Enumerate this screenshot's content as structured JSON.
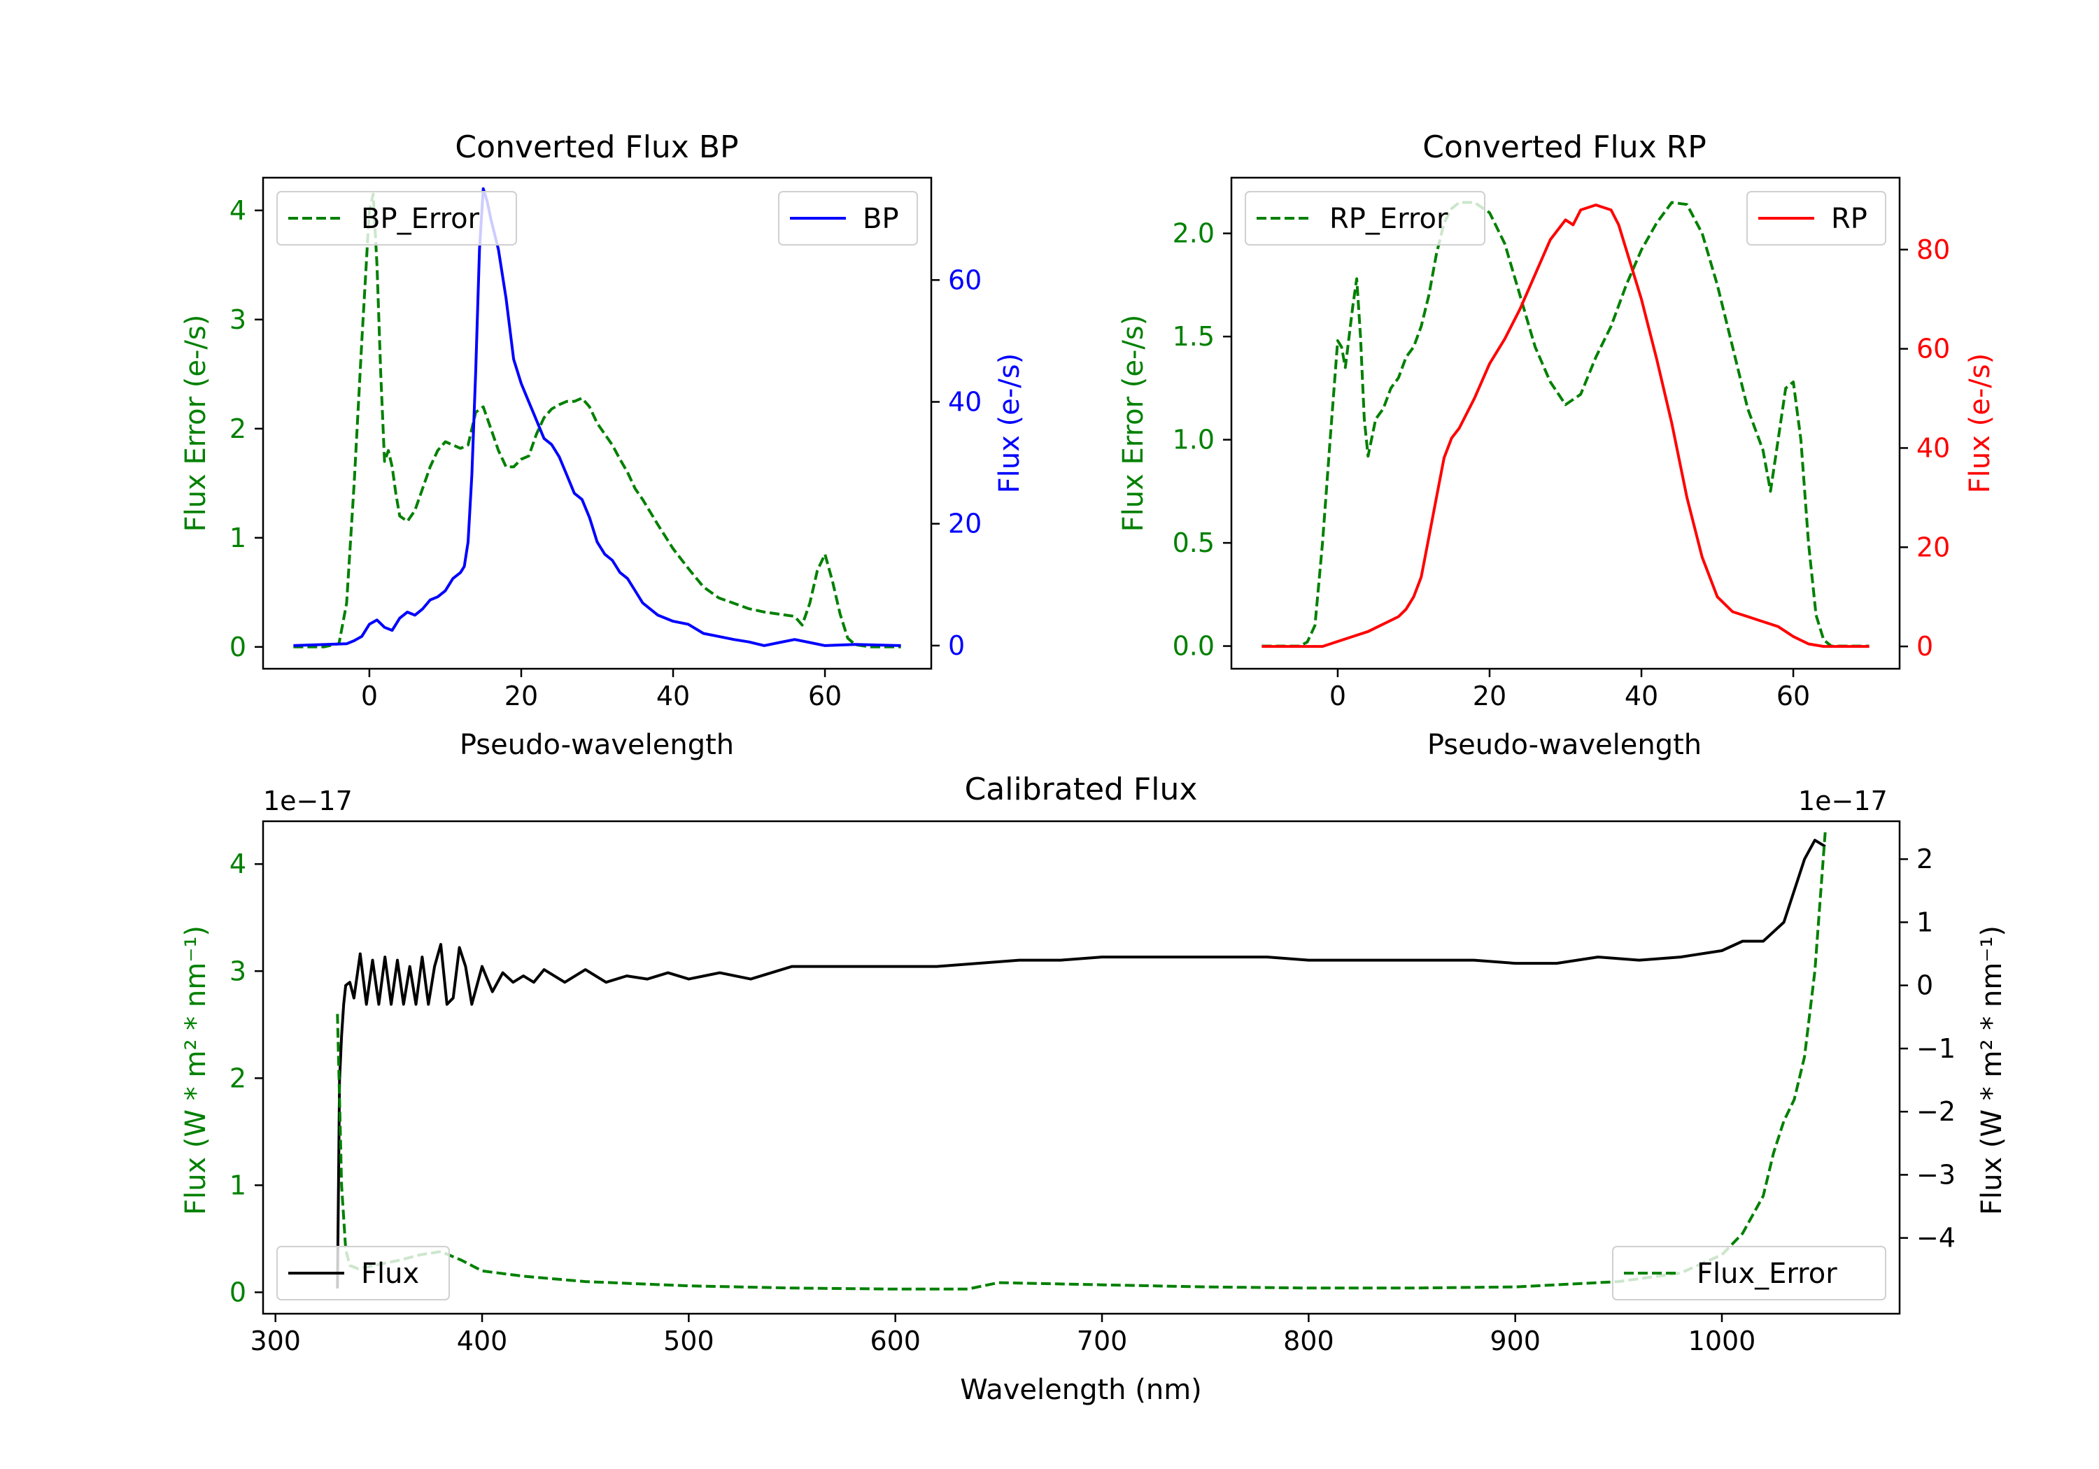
{
  "chart_data": [
    {
      "id": "bp",
      "type": "line",
      "title": "Converted Flux BP",
      "xlabel": "Pseudo-wavelength",
      "xlim": [
        -14,
        74
      ],
      "xticks": [
        0,
        20,
        40,
        60
      ],
      "left_axis": {
        "label": "Flux Error (e-/s)",
        "color": "#008000",
        "ylim": [
          -0.2,
          4.3
        ],
        "ticks": [
          0,
          1,
          2,
          3,
          4
        ]
      },
      "right_axis": {
        "label": "Flux (e-/s)",
        "color": "#0000ff",
        "ylim": [
          -3.8,
          76.8
        ],
        "ticks": [
          0,
          20,
          40,
          60
        ]
      },
      "series": [
        {
          "name": "BP_Error",
          "axis": "left",
          "style": "dashed",
          "color": "#008000",
          "x": [
            -10,
            -6,
            -4,
            -3,
            -2,
            -1,
            0,
            0.5,
            1,
            1.5,
            2,
            2.5,
            3,
            3.5,
            4,
            5,
            6,
            7,
            8,
            9,
            10,
            11,
            12,
            13,
            14,
            15,
            16,
            17,
            18,
            19,
            20,
            21,
            22,
            23,
            24,
            25,
            26,
            27,
            28,
            29,
            30,
            31,
            32,
            33,
            34,
            35,
            36,
            38,
            40,
            42,
            44,
            46,
            48,
            50,
            52,
            54,
            56,
            57,
            58,
            59,
            60,
            61,
            62,
            63,
            64,
            66,
            70
          ],
          "values": [
            0,
            0,
            0.03,
            0.4,
            1.5,
            2.8,
            4.0,
            4.15,
            3.5,
            2.5,
            1.7,
            1.8,
            1.65,
            1.4,
            1.2,
            1.15,
            1.25,
            1.45,
            1.65,
            1.8,
            1.88,
            1.85,
            1.82,
            1.85,
            2.15,
            2.2,
            2.0,
            1.8,
            1.65,
            1.65,
            1.72,
            1.75,
            1.95,
            2.1,
            2.18,
            2.22,
            2.25,
            2.25,
            2.28,
            2.2,
            2.05,
            1.95,
            1.85,
            1.72,
            1.6,
            1.45,
            1.35,
            1.12,
            0.9,
            0.72,
            0.55,
            0.45,
            0.4,
            0.35,
            0.32,
            0.3,
            0.28,
            0.2,
            0.4,
            0.7,
            0.85,
            0.6,
            0.3,
            0.08,
            0.02,
            0,
            0
          ]
        },
        {
          "name": "BP",
          "axis": "right",
          "style": "solid",
          "color": "#0000ff",
          "x": [
            -10,
            -3,
            -2,
            -1,
            0,
            1,
            2,
            3,
            4,
            5,
            6,
            7,
            8,
            9,
            10,
            11,
            12,
            12.5,
            13,
            13.5,
            14,
            14.5,
            15,
            15.5,
            16,
            17,
            18,
            19,
            20,
            21,
            22,
            23,
            24,
            25,
            26,
            27,
            28,
            29,
            30,
            31,
            32,
            33,
            34,
            35,
            36,
            38,
            40,
            42,
            44,
            46,
            48,
            50,
            52,
            54,
            56,
            58,
            60,
            64,
            70
          ],
          "values": [
            0,
            0.3,
            0.8,
            1.5,
            3.5,
            4.2,
            3.0,
            2.5,
            4.5,
            5.5,
            5.0,
            6.0,
            7.5,
            8.0,
            9.0,
            11,
            12,
            13,
            17,
            28,
            45,
            65,
            75,
            73,
            70,
            65,
            57,
            47,
            43,
            40,
            37,
            34,
            33,
            31,
            28,
            25,
            24,
            21,
            17,
            15,
            14,
            12,
            11,
            9,
            7,
            5,
            4,
            3.5,
            2,
            1.5,
            1,
            0.6,
            0,
            0.5,
            1,
            0.5,
            0,
            0.2,
            0
          ]
        }
      ],
      "legends": [
        {
          "entries": [
            "BP_Error"
          ],
          "position": "upper left"
        },
        {
          "entries": [
            "BP"
          ],
          "position": "upper right"
        }
      ]
    },
    {
      "id": "rp",
      "type": "line",
      "title": "Converted Flux RP",
      "xlabel": "Pseudo-wavelength",
      "xlim": [
        -14,
        74
      ],
      "xticks": [
        0,
        20,
        40,
        60
      ],
      "left_axis": {
        "label": "Flux Error (e-/s)",
        "color": "#008000",
        "ylim": [
          -0.11,
          2.27
        ],
        "ticks": [
          0.0,
          0.5,
          1.0,
          1.5,
          2.0
        ]
      },
      "right_axis": {
        "label": "Flux (e-/s)",
        "color": "#ff0000",
        "ylim": [
          -4.5,
          94.5
        ],
        "ticks": [
          0,
          20,
          40,
          60,
          80
        ]
      },
      "series": [
        {
          "name": "RP_Error",
          "axis": "left",
          "style": "dashed",
          "color": "#008000",
          "x": [
            -10,
            -5,
            -4,
            -3,
            -2,
            -1,
            0,
            0.5,
            1,
            2,
            2.5,
            3,
            3.5,
            4,
            5,
            6,
            7,
            8,
            9,
            10,
            11,
            12,
            13,
            14,
            15,
            16,
            18,
            20,
            22,
            24,
            26,
            28,
            30,
            32,
            34,
            36,
            38,
            40,
            42,
            44,
            46,
            48,
            50,
            52,
            53,
            54,
            55,
            56,
            57,
            58,
            59,
            60,
            61,
            62,
            63,
            64,
            65,
            70
          ],
          "values": [
            0,
            0,
            0.02,
            0.1,
            0.5,
            1.0,
            1.48,
            1.45,
            1.35,
            1.65,
            1.78,
            1.5,
            1.1,
            0.92,
            1.1,
            1.15,
            1.25,
            1.3,
            1.4,
            1.45,
            1.55,
            1.7,
            1.9,
            2.05,
            2.12,
            2.15,
            2.15,
            2.1,
            1.95,
            1.7,
            1.45,
            1.28,
            1.17,
            1.22,
            1.4,
            1.55,
            1.75,
            1.92,
            2.05,
            2.15,
            2.14,
            2.0,
            1.75,
            1.45,
            1.3,
            1.15,
            1.05,
            0.95,
            0.75,
            1.0,
            1.25,
            1.28,
            1.0,
            0.5,
            0.15,
            0.03,
            0,
            0
          ]
        },
        {
          "name": "RP",
          "axis": "right",
          "style": "solid",
          "color": "#ff0000",
          "x": [
            -10,
            -2,
            0,
            2,
            4,
            6,
            8,
            9,
            10,
            11,
            12,
            13,
            14,
            15,
            16,
            18,
            20,
            22,
            24,
            26,
            28,
            30,
            31,
            32,
            34,
            36,
            37,
            38,
            40,
            42,
            44,
            46,
            48,
            50,
            52,
            54,
            56,
            58,
            60,
            62,
            64,
            66,
            70
          ],
          "values": [
            0,
            0,
            1,
            2,
            3,
            4.5,
            6,
            7.5,
            10,
            14,
            22,
            30,
            38,
            42,
            44,
            50,
            57,
            62,
            68,
            75,
            82,
            86,
            85,
            88,
            89,
            88,
            85,
            80,
            70,
            58,
            45,
            30,
            18,
            10,
            7,
            6,
            5,
            4,
            2,
            0.5,
            0,
            0,
            0
          ]
        }
      ],
      "legends": [
        {
          "entries": [
            "RP_Error"
          ],
          "position": "upper left"
        },
        {
          "entries": [
            "RP"
          ],
          "position": "upper right"
        }
      ]
    },
    {
      "id": "cal",
      "type": "line",
      "title": "Calibrated Flux",
      "xlabel": "Wavelength (nm)",
      "xlim": [
        294,
        1086
      ],
      "xticks": [
        300,
        400,
        500,
        600,
        700,
        800,
        900,
        1000
      ],
      "left_axis": {
        "label": "Flux (W * m² * nm⁻¹)",
        "color": "#008000",
        "ylim": [
          -0.2,
          4.4
        ],
        "ticks": [
          0,
          1,
          2,
          3,
          4
        ],
        "offset_text": "1e−17"
      },
      "right_axis": {
        "label": "Flux (W * m² * nm⁻¹)",
        "color": "#000000",
        "ylim": [
          -5.2,
          2.6
        ],
        "ticks": [
          -4,
          -3,
          -2,
          -1,
          0,
          1,
          2
        ],
        "offset_text": "1e−17"
      },
      "series": [
        {
          "name": "Flux",
          "axis": "right",
          "style": "solid",
          "color": "#000000",
          "x": [
            330,
            331,
            332,
            333,
            334,
            336,
            338,
            341,
            344,
            347,
            350,
            353,
            356,
            359,
            362,
            365,
            368,
            371,
            374,
            377,
            380,
            383,
            386,
            389,
            392,
            395,
            400,
            405,
            410,
            415,
            420,
            425,
            430,
            440,
            450,
            460,
            470,
            480,
            490,
            500,
            515,
            530,
            550,
            570,
            600,
            620,
            640,
            660,
            680,
            700,
            720,
            740,
            760,
            780,
            800,
            820,
            840,
            860,
            880,
            900,
            920,
            940,
            960,
            980,
            1000,
            1010,
            1020,
            1030,
            1040,
            1045,
            1050
          ],
          "values": [
            -4.8,
            -1.5,
            -0.8,
            -0.3,
            0,
            0.05,
            -0.2,
            0.5,
            -0.3,
            0.4,
            -0.3,
            0.45,
            -0.3,
            0.4,
            -0.3,
            0.3,
            -0.3,
            0.45,
            -0.3,
            0.3,
            0.65,
            -0.3,
            -0.2,
            0.6,
            0.3,
            -0.3,
            0.3,
            -0.1,
            0.2,
            0.05,
            0.15,
            0.05,
            0.25,
            0.05,
            0.25,
            0.05,
            0.15,
            0.1,
            0.2,
            0.1,
            0.2,
            0.1,
            0.3,
            0.3,
            0.3,
            0.3,
            0.35,
            0.4,
            0.4,
            0.45,
            0.45,
            0.45,
            0.45,
            0.45,
            0.4,
            0.4,
            0.4,
            0.4,
            0.4,
            0.35,
            0.35,
            0.45,
            0.4,
            0.45,
            0.55,
            0.7,
            0.7,
            1.0,
            2.0,
            2.3,
            2.2
          ]
        },
        {
          "name": "Flux_Error",
          "axis": "left",
          "style": "dashed",
          "color": "#008000",
          "x": [
            330,
            331,
            332,
            334,
            336,
            340,
            350,
            360,
            370,
            380,
            390,
            400,
            420,
            450,
            500,
            550,
            600,
            635,
            640,
            650,
            700,
            750,
            800,
            850,
            900,
            950,
            980,
            1000,
            1010,
            1020,
            1025,
            1030,
            1035,
            1040,
            1045,
            1050
          ],
          "values": [
            2.6,
            1.8,
            1.0,
            0.4,
            0.25,
            0.22,
            0.26,
            0.3,
            0.35,
            0.38,
            0.3,
            0.2,
            0.15,
            0.1,
            0.06,
            0.04,
            0.03,
            0.03,
            0.05,
            0.09,
            0.07,
            0.05,
            0.04,
            0.04,
            0.05,
            0.1,
            0.18,
            0.35,
            0.55,
            0.9,
            1.3,
            1.6,
            1.8,
            2.2,
            3.0,
            4.3
          ]
        }
      ],
      "legends": [
        {
          "entries": [
            "Flux"
          ],
          "position": "lower left"
        },
        {
          "entries": [
            "Flux_Error"
          ],
          "position": "lower right"
        }
      ]
    }
  ]
}
